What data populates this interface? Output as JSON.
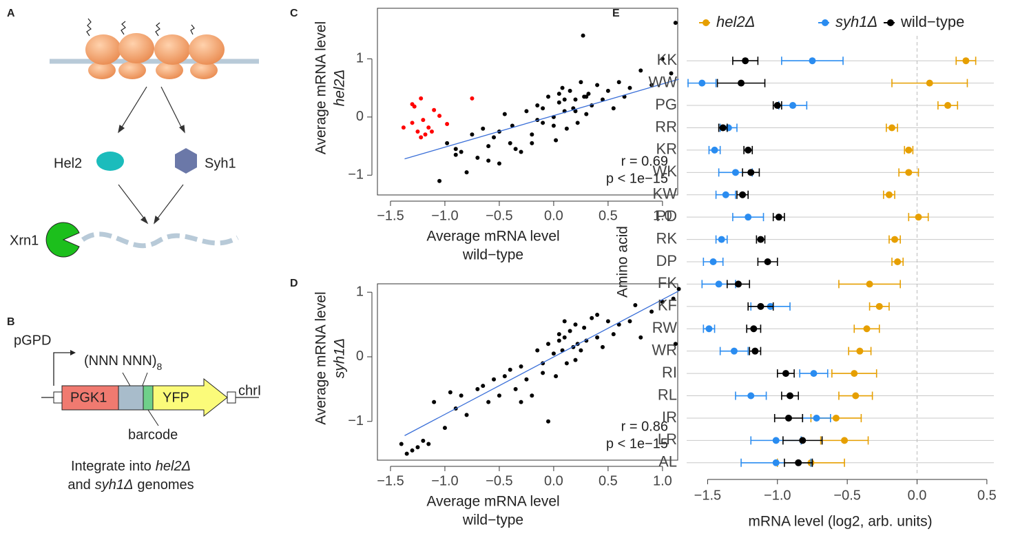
{
  "diagram": {
    "panel_labels": [
      "A",
      "B"
    ],
    "proteins": {
      "hel2": "Hel2",
      "syh1": "Syh1",
      "xrn1": "Xrn1"
    },
    "construct": {
      "promoter": "pGPD",
      "insert": "(NNN NNN)",
      "insert_subscript": "8",
      "gene": "PGK1",
      "reporter": "YFP",
      "locus": "chrI",
      "barcode": "barcode"
    },
    "caption": {
      "line1": "Integrate into",
      "strain1": "hel2Δ",
      "line2": "and",
      "strain2": "syh1Δ",
      "line2_end": "genomes"
    }
  },
  "chart_data": [
    {
      "type": "scatter",
      "label": "C",
      "y_label": [
        "Average mRNA level",
        "hel2Δ"
      ],
      "x_label": [
        "Average mRNA level",
        "wild−type"
      ],
      "annotations": [
        "r = 0.69",
        "p < 1e−15"
      ],
      "xlim": [
        -1.62,
        1.14
      ],
      "ylim": [
        -1.34,
        1.87
      ],
      "xticks": [
        {
          "value": -1.5,
          "label": "−1.5"
        },
        {
          "value": -1,
          "label": "−1.0"
        },
        {
          "value": -0.5,
          "label": "−0.5"
        },
        {
          "value": 0,
          "label": "0.0"
        },
        0.5,
        {
          "value": 1,
          "label": "1.0"
        }
      ],
      "yticks": [
        {
          "value": -1,
          "label": "−1"
        },
        0,
        1
      ],
      "fit": {
        "x": [
          -1.37,
          1.15
        ],
        "y": [
          -0.72,
          0.65
        ],
        "color": "#3a6fd8"
      },
      "series": [
        {
          "color": "#000000",
          "x": [
            -1.05,
            -0.98,
            -0.9,
            -0.85,
            -0.8,
            -0.75,
            -0.7,
            -0.65,
            -0.6,
            -0.55,
            -0.5,
            -0.45,
            -0.4,
            -0.38,
            -0.3,
            -0.25,
            -0.2,
            -0.15,
            -0.1,
            -0.05,
            0,
            0.02,
            0.05,
            0.08,
            0.1,
            0.12,
            0.15,
            0.18,
            0.2,
            0.22,
            0.25,
            0.28,
            0.3,
            0.32,
            0.35,
            0.4,
            0.45,
            0.5,
            0.55,
            0.6,
            0.65,
            0.7,
            0.8,
            0.9,
            1.0,
            1.08,
            1.12,
            -0.2,
            -0.1,
            0.0,
            0.1,
            0.2,
            0.3,
            -0.35,
            -0.5,
            -0.6,
            -0.9,
            0.27,
            0.05,
            -0.15
          ],
          "values": [
            -1.1,
            -0.45,
            -0.55,
            -0.6,
            -0.95,
            -0.3,
            -0.7,
            -0.2,
            -0.5,
            -0.35,
            -0.8,
            0.05,
            -0.45,
            -0.15,
            -0.6,
            0.1,
            -0.3,
            0.2,
            -0.1,
            0.35,
            0.0,
            -0.4,
            0.25,
            0.5,
            0.1,
            -0.2,
            0.45,
            0.15,
            0.3,
            -0.1,
            0.6,
            0.35,
            0.05,
            0.4,
            0.2,
            0.55,
            0.3,
            0.45,
            0.15,
            0.6,
            0.35,
            0.5,
            0.8,
            0.55,
            1.0,
            0.75,
            1.62,
            -0.45,
            0.15,
            -0.15,
            0.3,
            0.1,
            0.35,
            -0.55,
            -0.25,
            -0.75,
            -0.65,
            1.4,
            0.4,
            -0.05
          ]
        },
        {
          "color": "#ff0000",
          "x": [
            -1.38,
            -1.3,
            -1.25,
            -1.2,
            -1.22,
            -1.15,
            -1.1,
            -1.28,
            -1.18,
            -1.05,
            -0.98,
            -1.22,
            -1.12,
            -0.75,
            -1.3
          ],
          "values": [
            -0.18,
            -0.1,
            -0.25,
            -0.05,
            0.32,
            -0.18,
            0.12,
            0.18,
            -0.3,
            0.02,
            -0.12,
            -0.35,
            -0.25,
            0.32,
            0.22
          ]
        }
      ]
    },
    {
      "type": "scatter",
      "label": "D",
      "y_label": [
        "Average mRNA level",
        "syh1Δ"
      ],
      "x_label": [
        "Average mRNA level",
        "wild−type"
      ],
      "annotations": [
        "r = 0.86",
        "p < 1e−15"
      ],
      "xlim": [
        -1.62,
        1.14
      ],
      "ylim": [
        -1.6,
        1.13
      ],
      "xticks": [
        {
          "value": -1.5,
          "label": "−1.5"
        },
        {
          "value": -1,
          "label": "−1.0"
        },
        {
          "value": -0.5,
          "label": "−0.5"
        },
        {
          "value": 0,
          "label": "0.0"
        },
        0.5,
        {
          "value": 1,
          "label": "1.0"
        }
      ],
      "yticks": [
        {
          "value": -1,
          "label": "−1"
        },
        0,
        1
      ],
      "fit": {
        "x": [
          -1.37,
          1.15
        ],
        "y": [
          -1.22,
          1.02
        ],
        "color": "#3a6fd8"
      },
      "series": [
        {
          "color": "#000000",
          "x": [
            -1.4,
            -1.35,
            -1.3,
            -1.25,
            -1.2,
            -1.15,
            -1.1,
            -1.0,
            -0.95,
            -0.9,
            -0.85,
            -0.8,
            -0.7,
            -0.65,
            -0.6,
            -0.55,
            -0.5,
            -0.45,
            -0.4,
            -0.35,
            -0.3,
            -0.25,
            -0.2,
            -0.15,
            -0.1,
            -0.05,
            0,
            0.02,
            0.05,
            0.08,
            0.1,
            0.12,
            0.15,
            0.18,
            0.2,
            0.22,
            0.25,
            0.28,
            0.3,
            0.35,
            0.4,
            0.45,
            0.5,
            0.55,
            0.6,
            0.7,
            0.75,
            0.8,
            0.9,
            1.0,
            1.1,
            1.15,
            -0.1,
            0.05,
            0.2,
            -0.3,
            0.4,
            -0.05,
            0.1,
            1.12
          ],
          "values": [
            -1.35,
            -1.5,
            -1.45,
            -1.4,
            -1.3,
            -1.35,
            -0.7,
            -1.1,
            -0.55,
            -0.8,
            -0.6,
            -0.9,
            -0.5,
            -0.45,
            -0.7,
            -0.35,
            -0.6,
            -0.3,
            -0.2,
            -0.5,
            -0.15,
            -0.35,
            -0.6,
            0.1,
            -0.1,
            0.2,
            0.05,
            -0.3,
            0.35,
            0.1,
            0.3,
            -0.1,
            0.4,
            0.15,
            0.5,
            0.2,
            0.1,
            0.45,
            0.25,
            0.6,
            0.3,
            0.15,
            0.55,
            0.35,
            0.5,
            0.55,
            0.8,
            0.3,
            0.7,
            0.85,
            0.9,
            1.05,
            -0.25,
            0.25,
            -0.05,
            -0.7,
            0.65,
            -1.0,
            0.55,
            0.2
          ]
        }
      ]
    },
    {
      "type": "dot_error",
      "label": "E",
      "y_label": "Amino acid",
      "x_label": "mRNA level (log2, arb. units)",
      "xlim": [
        -1.65,
        0.55
      ],
      "reference_line": 0,
      "xticks": [
        {
          "value": -1.5,
          "label": "−1.5"
        },
        {
          "value": -1,
          "label": "−1.0"
        },
        {
          "value": -0.5,
          "label": "−0.5"
        },
        {
          "value": 0,
          "label": "0.0"
        },
        0.5
      ],
      "categories": [
        "KK",
        "WW",
        "PG",
        "RR",
        "KR",
        "WK",
        "KW",
        "PD",
        "RK",
        "DP",
        "FK",
        "KF",
        "RW",
        "WR",
        "RI",
        "RL",
        "IR",
        "LR",
        "AL"
      ],
      "series": [
        {
          "name": "hel2Δ",
          "italic": true,
          "color": "#e69f00",
          "values": [
            0.35,
            0.09,
            0.22,
            -0.18,
            -0.06,
            -0.06,
            -0.2,
            0.01,
            -0.16,
            -0.14,
            -0.34,
            -0.27,
            -0.36,
            -0.41,
            -0.45,
            -0.44,
            -0.58,
            -0.52,
            -0.76
          ],
          "errors": [
            0.07,
            0.27,
            0.07,
            0.04,
            0.03,
            0.07,
            0.04,
            0.07,
            0.04,
            0.04,
            0.22,
            0.07,
            0.09,
            0.08,
            0.16,
            0.12,
            0.18,
            0.17,
            0.24
          ]
        },
        {
          "name": "syh1Δ",
          "italic": true,
          "color": "#2a8cf0",
          "values": [
            -0.75,
            -1.54,
            -0.89,
            -1.35,
            -1.45,
            -1.3,
            -1.37,
            -1.21,
            -1.4,
            -1.46,
            -1.42,
            -1.05,
            -1.49,
            -1.31,
            -0.74,
            -1.19,
            -0.72,
            -1.01,
            -1.01
          ],
          "errors": [
            0.22,
            0.1,
            0.1,
            0.06,
            0.04,
            0.12,
            0.07,
            0.11,
            0.04,
            0.07,
            0.12,
            0.14,
            0.04,
            0.1,
            0.1,
            0.11,
            0.1,
            0.18,
            0.25
          ]
        },
        {
          "name": "wild−type",
          "italic": false,
          "color": "#000000",
          "values": [
            -1.23,
            -1.26,
            -1.0,
            -1.39,
            -1.21,
            -1.19,
            -1.25,
            -0.99,
            -1.12,
            -1.07,
            -1.28,
            -1.12,
            -1.17,
            -1.16,
            -0.94,
            -0.91,
            -0.92,
            -0.82,
            -0.85
          ],
          "errors": [
            0.09,
            0.17,
            0.03,
            0.03,
            0.03,
            0.06,
            0.04,
            0.04,
            0.03,
            0.07,
            0.08,
            0.09,
            0.05,
            0.04,
            0.06,
            0.06,
            0.1,
            0.14,
            0.1
          ]
        }
      ]
    }
  ]
}
